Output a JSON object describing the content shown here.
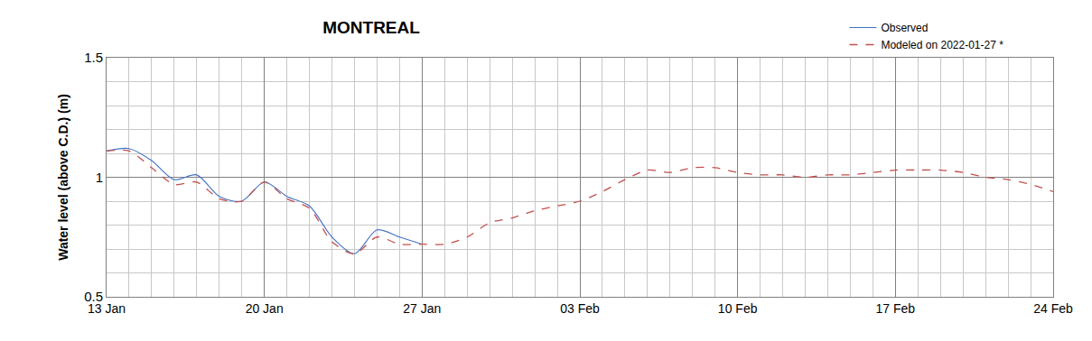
{
  "chart_data": {
    "type": "line",
    "title": "MONTREAL",
    "y_label": "Water level (above C.D.) (m)",
    "categories": [
      "13 Jan",
      null,
      null,
      null,
      null,
      null,
      null,
      "20 Jan",
      null,
      null,
      null,
      null,
      null,
      null,
      "27 Jan",
      null,
      null,
      null,
      null,
      null,
      null,
      "03 Feb",
      null,
      null,
      null,
      null,
      null,
      null,
      "10 Feb",
      null,
      null,
      null,
      null,
      null,
      null,
      "17 Feb",
      null,
      null,
      null,
      null,
      null,
      null,
      "24 Feb"
    ],
    "series": [
      {
        "name": "Observed",
        "color": "#4472c4",
        "line_style": "solid",
        "values": [
          1.11,
          1.12,
          1.07,
          0.99,
          1.01,
          0.92,
          0.9,
          0.98,
          0.92,
          0.88,
          0.75,
          0.68,
          0.78,
          0.75,
          0.72,
          null,
          null,
          null,
          null,
          null,
          null,
          null,
          null,
          null,
          null,
          null,
          null,
          null,
          null,
          null,
          null,
          null,
          null,
          null,
          null,
          null,
          null,
          null,
          null,
          null,
          null,
          null,
          null
        ]
      },
      {
        "name": "Modeled on 2022-01-27 *",
        "color": "#c0504d",
        "line_style": "dashed",
        "values": [
          1.11,
          1.11,
          1.04,
          0.97,
          0.98,
          0.91,
          0.9,
          0.98,
          0.91,
          0.87,
          0.73,
          0.68,
          0.75,
          0.72,
          0.72,
          0.72,
          0.75,
          0.81,
          0.83,
          0.86,
          0.88,
          0.9,
          0.94,
          0.99,
          1.03,
          1.02,
          1.04,
          1.04,
          1.02,
          1.01,
          1.01,
          1.0,
          1.01,
          1.01,
          1.02,
          1.03,
          1.03,
          1.03,
          1.02,
          1.0,
          0.99,
          0.97,
          0.94
        ]
      }
    ],
    "ylim": [
      0.5,
      1.5
    ],
    "yticks": [
      0.5,
      1,
      1.5
    ],
    "grid": true,
    "legend": "top right"
  }
}
